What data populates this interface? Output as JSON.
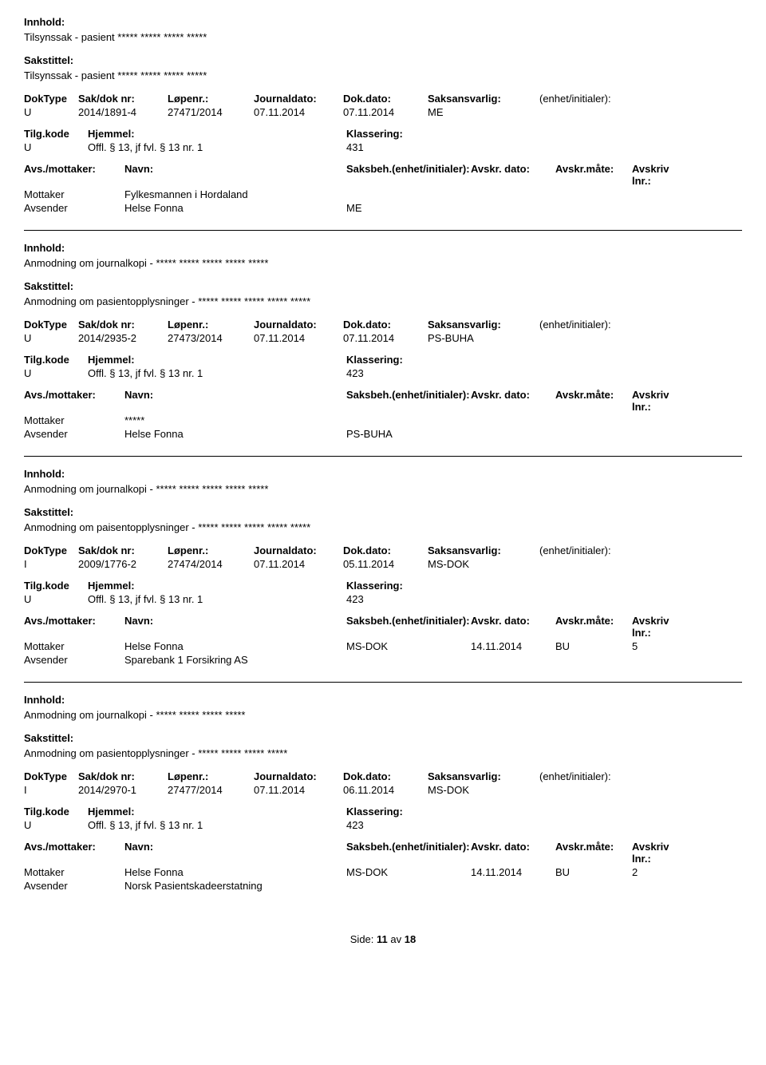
{
  "labels": {
    "innhold": "Innhold:",
    "sakstittel": "Sakstittel:",
    "doktype": "DokType",
    "sakdoknr": "Sak/dok nr:",
    "lopenr": "Løpenr.:",
    "journaldato": "Journaldato:",
    "dokdato": "Dok.dato:",
    "saksansvarlig": "Saksansvarlig:",
    "enhet": "(enhet/initialer):",
    "tilgkode": "Tilg.kode",
    "hjemmel": "Hjemmel:",
    "klassering": "Klassering:",
    "avsmottaker": "Avs./mottaker:",
    "navn": "Navn:",
    "saksbeh_enhet": "Saksbeh.(enhet/initialer):",
    "avskr_dato": "Avskr. dato:",
    "avskr_mate": "Avskr.måte:",
    "avskriv_lnr": "Avskriv lnr.:",
    "mottaker": "Mottaker",
    "avsender": "Avsender",
    "side": "Side:",
    "av": "av"
  },
  "records": [
    {
      "innhold": "Tilsynssak - pasient ***** ***** ***** *****",
      "sakstittel": "Tilsynssak - pasient ***** ***** ***** *****",
      "doktype": "U",
      "sakdoknr": "2014/1891-4",
      "lopenr": "27471/2014",
      "journaldato": "07.11.2014",
      "dokdato": "07.11.2014",
      "saksansvarlig": "ME",
      "enhet": "",
      "tilgkode": "U",
      "hjemmel": "Offl. § 13, jf fvl. § 13 nr. 1",
      "klassering": "431",
      "parties": [
        {
          "type": "Mottaker",
          "navn": "Fylkesmannen i Hordaland",
          "saksbeh": "",
          "avskr_dato": "",
          "avskr_mate": "",
          "avskr_lnr": ""
        },
        {
          "type": "Avsender",
          "navn": "Helse Fonna",
          "saksbeh": "ME",
          "avskr_dato": "",
          "avskr_mate": "",
          "avskr_lnr": ""
        }
      ]
    },
    {
      "innhold": "Anmodning om journalkopi - ***** ***** ***** ***** *****",
      "sakstittel": "Anmodning om pasientopplysninger - ***** ***** ***** ***** *****",
      "doktype": "U",
      "sakdoknr": "2014/2935-2",
      "lopenr": "27473/2014",
      "journaldato": "07.11.2014",
      "dokdato": "07.11.2014",
      "saksansvarlig": "PS-BUHA",
      "enhet": "",
      "tilgkode": "U",
      "hjemmel": "Offl. § 13, jf fvl. § 13 nr. 1",
      "klassering": "423",
      "parties": [
        {
          "type": "Mottaker",
          "navn": "*****",
          "saksbeh": "",
          "avskr_dato": "",
          "avskr_mate": "",
          "avskr_lnr": ""
        },
        {
          "type": "Avsender",
          "navn": "Helse Fonna",
          "saksbeh": "PS-BUHA",
          "avskr_dato": "",
          "avskr_mate": "",
          "avskr_lnr": ""
        }
      ]
    },
    {
      "innhold": "Anmodning om journalkopi - ***** ***** ***** ***** *****",
      "sakstittel": "Anmodning om paisentopplysninger - ***** ***** ***** ***** *****",
      "doktype": "I",
      "sakdoknr": "2009/1776-2",
      "lopenr": "27474/2014",
      "journaldato": "07.11.2014",
      "dokdato": "05.11.2014",
      "saksansvarlig": "MS-DOK",
      "enhet": "",
      "tilgkode": "U",
      "hjemmel": "Offl. § 13, jf fvl. § 13 nr. 1",
      "klassering": "423",
      "parties": [
        {
          "type": "Mottaker",
          "navn": "Helse Fonna",
          "saksbeh": "MS-DOK",
          "avskr_dato": "14.11.2014",
          "avskr_mate": "BU",
          "avskr_lnr": "5"
        },
        {
          "type": "Avsender",
          "navn": "Sparebank 1 Forsikring AS",
          "saksbeh": "",
          "avskr_dato": "",
          "avskr_mate": "",
          "avskr_lnr": ""
        }
      ]
    },
    {
      "innhold": "Anmodning om journalkopi - ***** ***** ***** *****",
      "sakstittel": "Anmodning om pasientopplysninger - ***** ***** ***** *****",
      "doktype": "I",
      "sakdoknr": "2014/2970-1",
      "lopenr": "27477/2014",
      "journaldato": "07.11.2014",
      "dokdato": "06.11.2014",
      "saksansvarlig": "MS-DOK",
      "enhet": "",
      "tilgkode": "U",
      "hjemmel": "Offl. § 13, jf fvl. § 13 nr. 1",
      "klassering": "423",
      "parties": [
        {
          "type": "Mottaker",
          "navn": "Helse Fonna",
          "saksbeh": "MS-DOK",
          "avskr_dato": "14.11.2014",
          "avskr_mate": "BU",
          "avskr_lnr": "2"
        },
        {
          "type": "Avsender",
          "navn": "Norsk Pasientskadeerstatning",
          "saksbeh": "",
          "avskr_dato": "",
          "avskr_mate": "",
          "avskr_lnr": ""
        }
      ]
    }
  ],
  "footer": {
    "page": "11",
    "total": "18"
  }
}
